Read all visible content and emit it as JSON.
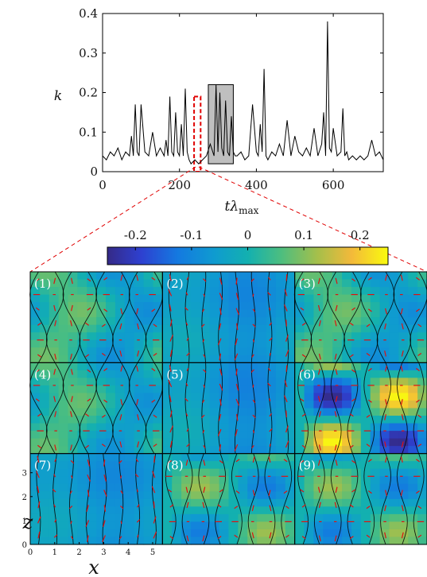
{
  "chart_data": [
    {
      "type": "line",
      "xlabel": "tλmax",
      "xlabel_main": "tλ",
      "xlabel_sub": "max",
      "ylabel": "k",
      "xlim": [
        0,
        730
      ],
      "ylim": [
        0,
        0.4
      ],
      "xticks": [
        "0",
        "200",
        "400",
        "600"
      ],
      "yticks": [
        "0",
        "0.1",
        "0.2",
        "0.3",
        "0.4"
      ],
      "grid": false,
      "series": [
        {
          "x": [
            0,
            10,
            20,
            30,
            40,
            50,
            60,
            70,
            75,
            80,
            85,
            90,
            95,
            100,
            110,
            120,
            130,
            140,
            150,
            160,
            165,
            170,
            175,
            180,
            185,
            190,
            195,
            200,
            205,
            210,
            215,
            220,
            225,
            230,
            240,
            250,
            260,
            270,
            280,
            290,
            295,
            300,
            305,
            310,
            315,
            320,
            325,
            330,
            335,
            340,
            345,
            350,
            360,
            370,
            380,
            390,
            400,
            405,
            410,
            415,
            420,
            425,
            430,
            440,
            450,
            460,
            470,
            480,
            490,
            500,
            510,
            520,
            530,
            540,
            550,
            560,
            570,
            575,
            580,
            585,
            590,
            595,
            600,
            610,
            620,
            625,
            630,
            635,
            640,
            650,
            660,
            670,
            680,
            690,
            700,
            710,
            720,
            730
          ],
          "y": [
            0.04,
            0.03,
            0.05,
            0.04,
            0.06,
            0.03,
            0.05,
            0.04,
            0.09,
            0.04,
            0.17,
            0.05,
            0.04,
            0.17,
            0.05,
            0.04,
            0.1,
            0.04,
            0.06,
            0.04,
            0.08,
            0.04,
            0.19,
            0.05,
            0.04,
            0.15,
            0.05,
            0.04,
            0.12,
            0.04,
            0.21,
            0.05,
            0.03,
            0.02,
            0.03,
            0.02,
            0.03,
            0.04,
            0.07,
            0.04,
            0.22,
            0.05,
            0.2,
            0.06,
            0.04,
            0.18,
            0.05,
            0.04,
            0.14,
            0.05,
            0.04,
            0.04,
            0.05,
            0.03,
            0.04,
            0.17,
            0.05,
            0.04,
            0.12,
            0.05,
            0.26,
            0.04,
            0.03,
            0.05,
            0.04,
            0.07,
            0.04,
            0.13,
            0.04,
            0.09,
            0.05,
            0.04,
            0.06,
            0.04,
            0.11,
            0.04,
            0.07,
            0.15,
            0.04,
            0.38,
            0.06,
            0.05,
            0.11,
            0.04,
            0.05,
            0.16,
            0.04,
            0.05,
            0.03,
            0.04,
            0.03,
            0.04,
            0.03,
            0.04,
            0.08,
            0.04,
            0.05,
            0.03
          ]
        }
      ],
      "annotations": [
        {
          "kind": "dashed-box",
          "color": "#e00000",
          "x_range": [
            238,
            255
          ],
          "y_range": [
            0,
            0.19
          ]
        },
        {
          "kind": "shaded-box",
          "color": "#bfbfbf",
          "x_range": [
            275,
            340
          ],
          "y_range": [
            0.02,
            0.22
          ]
        }
      ]
    },
    {
      "type": "heatmap",
      "colorbar": {
        "ticks": [
          "-0.2",
          "-0.1",
          "0",
          "0.1",
          "0.2"
        ],
        "range": [
          -0.25,
          0.25
        ],
        "colormap": "parula"
      },
      "panels": [
        {
          "label": "(1)",
          "pattern": "rolls-shifted",
          "amplitude": 0.12
        },
        {
          "label": "(2)",
          "pattern": "streaks",
          "amplitude": 0.05
        },
        {
          "label": "(3)",
          "pattern": "rolls-shifted",
          "amplitude": 0.12
        },
        {
          "label": "(4)",
          "pattern": "rolls-shifted",
          "amplitude": 0.11
        },
        {
          "label": "(5)",
          "pattern": "streaks",
          "amplitude": 0.06
        },
        {
          "label": "(6)",
          "pattern": "strong-cells",
          "amplitude": 0.25
        },
        {
          "label": "(7)",
          "pattern": "streaks",
          "amplitude": 0.04
        },
        {
          "label": "(8)",
          "pattern": "cells",
          "amplitude": 0.12
        },
        {
          "label": "(9)",
          "pattern": "cells",
          "amplitude": 0.12
        }
      ],
      "xlabel": "x",
      "ylabel": "z",
      "xticks": [
        "0",
        "1",
        "2",
        "3",
        "4",
        "5"
      ],
      "zticks": [
        "0",
        "1",
        "2",
        "3"
      ]
    }
  ]
}
